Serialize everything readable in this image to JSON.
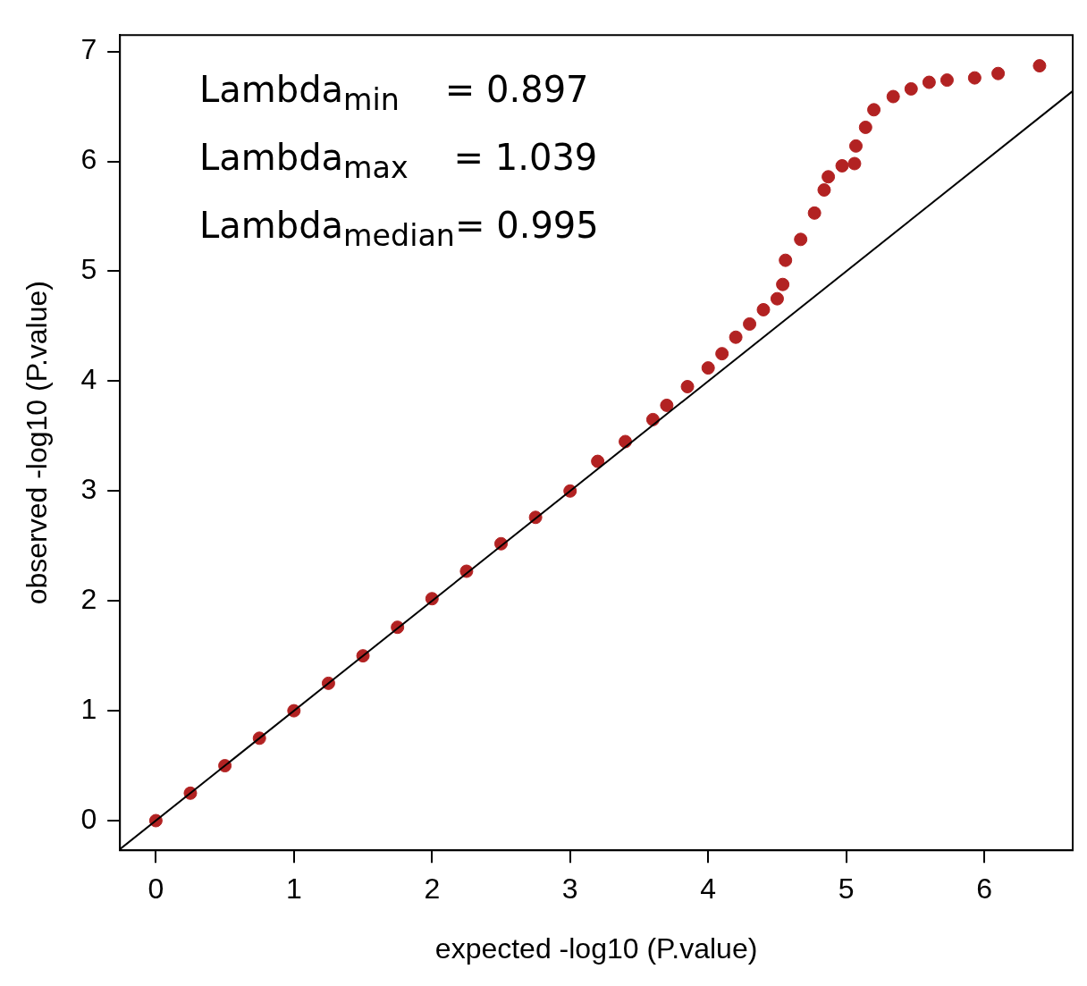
{
  "chart_data": {
    "type": "scatter",
    "xlabel": "expected -log10 (P.value)",
    "ylabel": "observed -log10 (P.value)",
    "xlim": [
      -0.26,
      6.64
    ],
    "ylim": [
      -0.27,
      7.15
    ],
    "xticks": [
      0,
      1,
      2,
      3,
      4,
      5,
      6
    ],
    "yticks": [
      0,
      1,
      2,
      3,
      4,
      5,
      6,
      7
    ],
    "grid": false,
    "legend": false,
    "annotations": [
      "Lambda$_{min}$    = 0.897",
      "Lambda$_{max}$    = 1.039",
      "Lambda$_{median}$= 0.995"
    ],
    "series": [
      {
        "color": "#b22222",
        "marker": "circle",
        "x": [
          0,
          0.25,
          0.5,
          0.75,
          1,
          1.25,
          1.5,
          1.75,
          2,
          2.25,
          2.5,
          2.75,
          3,
          3.2,
          3.4,
          3.6,
          3.7,
          3.85,
          4,
          4.1,
          4.2,
          4.3,
          4.4,
          4.5,
          4.54,
          4.56,
          4.67,
          4.77,
          4.84,
          4.87,
          4.97,
          5.06,
          5.07,
          5.14,
          5.2,
          5.34,
          5.47,
          5.6,
          5.73,
          5.93,
          6.1,
          6.4
        ],
        "values": [
          0,
          0.25,
          0.5,
          0.75,
          1,
          1.25,
          1.5,
          1.76,
          2.02,
          2.27,
          2.52,
          2.76,
          3,
          3.27,
          3.45,
          3.65,
          3.78,
          3.95,
          4.12,
          4.25,
          4.4,
          4.52,
          4.65,
          4.75,
          4.88,
          5.1,
          5.29,
          5.53,
          5.74,
          5.86,
          5.96,
          5.98,
          6.14,
          6.31,
          6.47,
          6.59,
          6.66,
          6.72,
          6.74,
          6.76,
          6.8,
          6.87
        ]
      },
      {
        "type": "line",
        "marker": "none",
        "color": "#000000",
        "x": [
          -0.26,
          6.64
        ],
        "values": [
          -0.26,
          6.64
        ]
      }
    ]
  }
}
